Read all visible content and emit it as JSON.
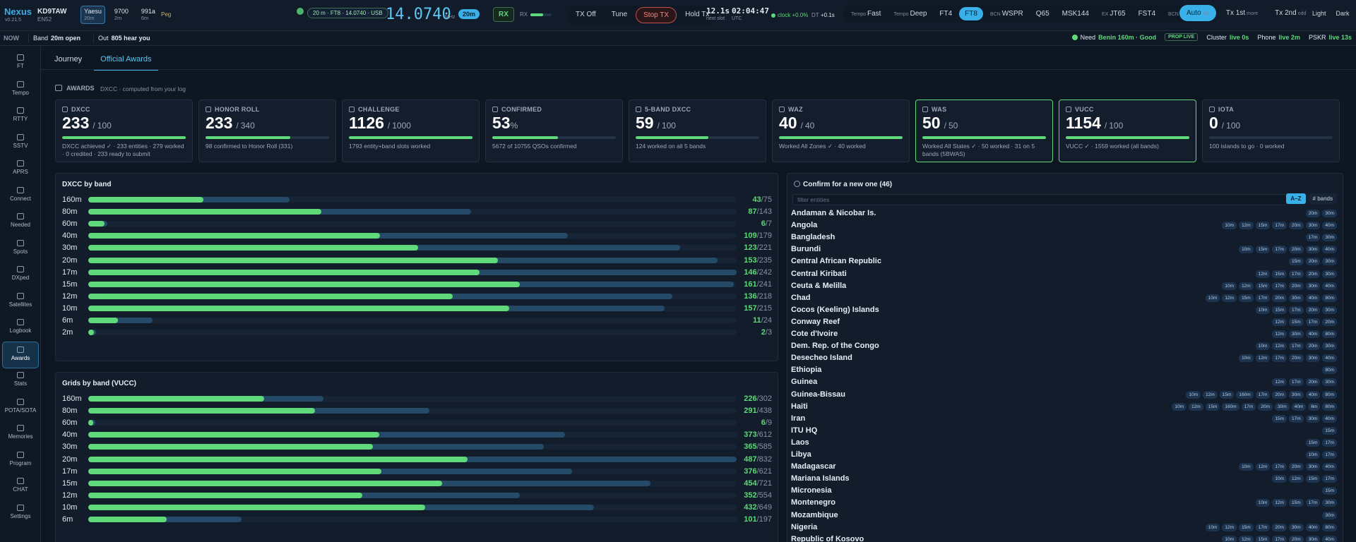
{
  "header": {
    "brand": "Nexus",
    "version": "v0.21.5",
    "callsign": "KD9TAW",
    "grid": "EN52",
    "radios": [
      {
        "name": "Yaesu",
        "band": "20m",
        "active": true
      },
      {
        "name": "9700",
        "band": "2m"
      },
      {
        "name": "991a",
        "band": "6m"
      }
    ],
    "peg": "Peg",
    "vfo": {
      "summary": "20 m · FT8 · 14.0740 · USB",
      "freq": "14.0740",
      "unit": "MHz",
      "band": "20m"
    },
    "rx_button": "RX",
    "rx_label": "RX",
    "tx_buttons": [
      {
        "label": "TX Off"
      },
      {
        "label": "Tune"
      },
      {
        "label": "Stop TX",
        "danger": true
      },
      {
        "label": "Hold Tx"
      }
    ],
    "slot": {
      "value": "12.1s",
      "label": "next slot"
    },
    "clock": {
      "value": "02:04:47",
      "label": "UTC"
    },
    "drift": "clock +0.0%",
    "dt_label": "DT",
    "dt": "+0.1s",
    "modes": [
      {
        "prefix": "Tempo",
        "label": "Fast"
      },
      {
        "prefix": "Tempo",
        "label": "Deep"
      },
      {
        "label": "FT4"
      },
      {
        "label": "FT8",
        "active": true
      },
      {
        "prefix": "BCN",
        "label": "WSPR"
      },
      {
        "label": "Q65"
      },
      {
        "label": "MSK144"
      },
      {
        "prefix": "EX",
        "label": "JT65"
      },
      {
        "label": "FST4"
      },
      {
        "prefix": "BCN",
        "label": "FST4W"
      }
    ],
    "sequence": [
      {
        "label": "Auto",
        "sub": "1st",
        "active": true
      },
      {
        "label": "Tx 1st",
        "sub": "more"
      },
      {
        "label": "Tx 2nd",
        "sub": "odd"
      }
    ],
    "themes": [
      {
        "label": "Light"
      },
      {
        "label": "Dark"
      }
    ]
  },
  "status": {
    "now": "NOW",
    "left": [
      {
        "label": "Band",
        "value": "20m open"
      },
      {
        "label": "Out",
        "value": "805 hear you"
      }
    ],
    "need": {
      "label": "Need",
      "value": "Benin 160m · Good"
    },
    "badge": "PROP LIVE",
    "feeds": [
      {
        "label": "Cluster",
        "value": "live 0s"
      },
      {
        "label": "Phone",
        "value": "live 2m"
      },
      {
        "label": "PSKR",
        "value": "live 13s"
      }
    ]
  },
  "sidebar": {
    "items": [
      {
        "label": "FT"
      },
      {
        "label": "Tempo"
      },
      {
        "label": "RTTY"
      },
      {
        "label": "SSTV"
      },
      {
        "label": "APRS"
      },
      {
        "label": "Connect"
      },
      {
        "label": "Needed"
      },
      {
        "label": "Spots"
      },
      {
        "label": "DXped"
      },
      {
        "label": "Satellites"
      },
      {
        "label": "Logbook"
      },
      {
        "label": "Awards",
        "active": true
      },
      {
        "label": "Stats"
      },
      {
        "label": "POTA/SOTA"
      },
      {
        "label": "Memories"
      },
      {
        "label": "Program"
      },
      {
        "label": "CHAT"
      },
      {
        "label": "Settings"
      }
    ]
  },
  "tabs": [
    {
      "label": "Journey"
    },
    {
      "label": "Official Awards",
      "active": true
    }
  ],
  "awards": {
    "title": "AWARDS",
    "subtitle": "DXCC · computed from your log",
    "separator": "/",
    "cards": [
      {
        "label": "DXCC",
        "value": 233,
        "goal": 100,
        "note": "DXCC achieved ✓ · 233 entities · 279 worked · 0 credited · 233 ready to submit"
      },
      {
        "label": "HONOR ROLL",
        "value": 233,
        "goal": 340,
        "note": "98 confirmed to Honor Roll (331)"
      },
      {
        "label": "CHALLENGE",
        "value": 1126,
        "goal": 1000,
        "note": "1793 entity+band slots worked"
      },
      {
        "label": "CONFIRMED",
        "value": 53,
        "unit": "%",
        "note": "5672 of 10755 QSOs confirmed"
      },
      {
        "label": "5-BAND DXCC",
        "value": 59,
        "goal": 100,
        "note": "124 worked on all 5 bands"
      },
      {
        "label": "WAZ",
        "value": 40,
        "goal": 40,
        "note": "Worked All Zones ✓ · 40 worked"
      },
      {
        "label": "WAS",
        "value": 50,
        "goal": 50,
        "note": "Worked All States ✓ · 50 worked · 31 on 5 bands (5BWAS)",
        "highlight": true
      },
      {
        "label": "VUCC",
        "value": 1154,
        "goal": 100,
        "note": "VUCC ✓ · 1559 worked (all bands)",
        "highlight": true
      },
      {
        "label": "IOTA",
        "value": 0,
        "goal": 100,
        "note": "100 islands to go · 0 worked"
      }
    ]
  },
  "dxcc_by_band": {
    "title": "DXCC by band",
    "separator": "/",
    "rows": [
      {
        "band": "160m",
        "confirmed": 43,
        "worked": 75
      },
      {
        "band": "80m",
        "confirmed": 87,
        "worked": 143
      },
      {
        "band": "60m",
        "confirmed": 6,
        "worked": 7
      },
      {
        "band": "40m",
        "confirmed": 109,
        "worked": 179
      },
      {
        "band": "30m",
        "confirmed": 123,
        "worked": 221
      },
      {
        "band": "20m",
        "confirmed": 153,
        "worked": 235
      },
      {
        "band": "17m",
        "confirmed": 146,
        "worked": 242
      },
      {
        "band": "15m",
        "confirmed": 161,
        "worked": 241
      },
      {
        "band": "12m",
        "confirmed": 136,
        "worked": 218
      },
      {
        "band": "10m",
        "confirmed": 157,
        "worked": 215
      },
      {
        "band": "6m",
        "confirmed": 11,
        "worked": 24
      },
      {
        "band": "2m",
        "confirmed": 2,
        "worked": 3
      }
    ]
  },
  "grids_by_band": {
    "title": "Grids by band (VUCC)",
    "separator": "/",
    "rows": [
      {
        "band": "160m",
        "confirmed": 226,
        "worked": 302
      },
      {
        "band": "80m",
        "confirmed": 291,
        "worked": 438
      },
      {
        "band": "60m",
        "confirmed": 6,
        "worked": 9
      },
      {
        "band": "40m",
        "confirmed": 373,
        "worked": 612
      },
      {
        "band": "30m",
        "confirmed": 365,
        "worked": 585
      },
      {
        "band": "20m",
        "confirmed": 487,
        "worked": 832
      },
      {
        "band": "17m",
        "confirmed": 376,
        "worked": 621
      },
      {
        "band": "15m",
        "confirmed": 454,
        "worked": 721
      },
      {
        "band": "12m",
        "confirmed": 352,
        "worked": 554
      },
      {
        "band": "10m",
        "confirmed": 432,
        "worked": 649
      },
      {
        "band": "6m",
        "confirmed": 101,
        "worked": 197
      }
    ]
  },
  "confirm": {
    "title": "Confirm for a new one (46)",
    "filter_placeholder": "filter entities",
    "sort_buttons": [
      {
        "label": "A–Z",
        "active": true
      },
      {
        "label": "# bands"
      }
    ],
    "entities": [
      {
        "name": "Andaman & Nicobar Is.",
        "bands": [
          "20m",
          "30m"
        ]
      },
      {
        "name": "Angola",
        "bands": [
          "10m",
          "12m",
          "15m",
          "17m",
          "20m",
          "30m",
          "40m"
        ]
      },
      {
        "name": "Bangladesh",
        "bands": [
          "17m",
          "30m"
        ]
      },
      {
        "name": "Burundi",
        "bands": [
          "10m",
          "15m",
          "17m",
          "20m",
          "30m",
          "40m"
        ]
      },
      {
        "name": "Central African Republic",
        "bands": [
          "15m",
          "20m",
          "30m"
        ]
      },
      {
        "name": "Central Kiribati",
        "bands": [
          "12m",
          "15m",
          "17m",
          "20m",
          "30m"
        ]
      },
      {
        "name": "Ceuta & Melilla",
        "bands": [
          "10m",
          "12m",
          "15m",
          "17m",
          "20m",
          "30m",
          "40m"
        ]
      },
      {
        "name": "Chad",
        "bands": [
          "10m",
          "12m",
          "15m",
          "17m",
          "20m",
          "30m",
          "40m",
          "80m"
        ]
      },
      {
        "name": "Cocos (Keeling) Islands",
        "bands": [
          "10m",
          "15m",
          "17m",
          "20m",
          "30m"
        ]
      },
      {
        "name": "Conway Reef",
        "bands": [
          "12m",
          "15m",
          "17m",
          "20m"
        ]
      },
      {
        "name": "Cote d'Ivoire",
        "bands": [
          "12m",
          "30m",
          "40m",
          "80m"
        ]
      },
      {
        "name": "Dem. Rep. of the Congo",
        "bands": [
          "10m",
          "12m",
          "17m",
          "20m",
          "30m"
        ]
      },
      {
        "name": "Desecheo Island",
        "bands": [
          "10m",
          "12m",
          "17m",
          "20m",
          "30m",
          "40m"
        ]
      },
      {
        "name": "Ethiopia",
        "bands": [
          "80m"
        ]
      },
      {
        "name": "Guinea",
        "bands": [
          "12m",
          "17m",
          "20m",
          "30m"
        ]
      },
      {
        "name": "Guinea-Bissau",
        "bands": [
          "10m",
          "12m",
          "15m",
          "160m",
          "17m",
          "20m",
          "30m",
          "40m",
          "80m"
        ]
      },
      {
        "name": "Haiti",
        "bands": [
          "10m",
          "12m",
          "15m",
          "160m",
          "17m",
          "20m",
          "30m",
          "40m",
          "6m",
          "80m"
        ]
      },
      {
        "name": "Iran",
        "bands": [
          "15m",
          "17m",
          "30m",
          "40m"
        ]
      },
      {
        "name": "ITU HQ",
        "bands": [
          "15m"
        ]
      },
      {
        "name": "Laos",
        "bands": [
          "15m",
          "17m"
        ]
      },
      {
        "name": "Libya",
        "bands": [
          "10m",
          "17m"
        ]
      },
      {
        "name": "Madagascar",
        "bands": [
          "10m",
          "12m",
          "17m",
          "20m",
          "30m",
          "40m"
        ]
      },
      {
        "name": "Mariana Islands",
        "bands": [
          "10m",
          "12m",
          "15m",
          "17m"
        ]
      },
      {
        "name": "Micronesia",
        "bands": [
          "15m"
        ]
      },
      {
        "name": "Montenegro",
        "bands": [
          "10m",
          "12m",
          "15m",
          "17m",
          "30m"
        ]
      },
      {
        "name": "Mozambique",
        "bands": [
          "30m"
        ]
      },
      {
        "name": "Nigeria",
        "bands": [
          "10m",
          "12m",
          "15m",
          "17m",
          "20m",
          "30m",
          "40m",
          "80m"
        ]
      },
      {
        "name": "Republic of Kosovo",
        "bands": [
          "10m",
          "12m",
          "15m",
          "17m",
          "20m",
          "30m",
          "40m"
        ]
      }
    ]
  }
}
